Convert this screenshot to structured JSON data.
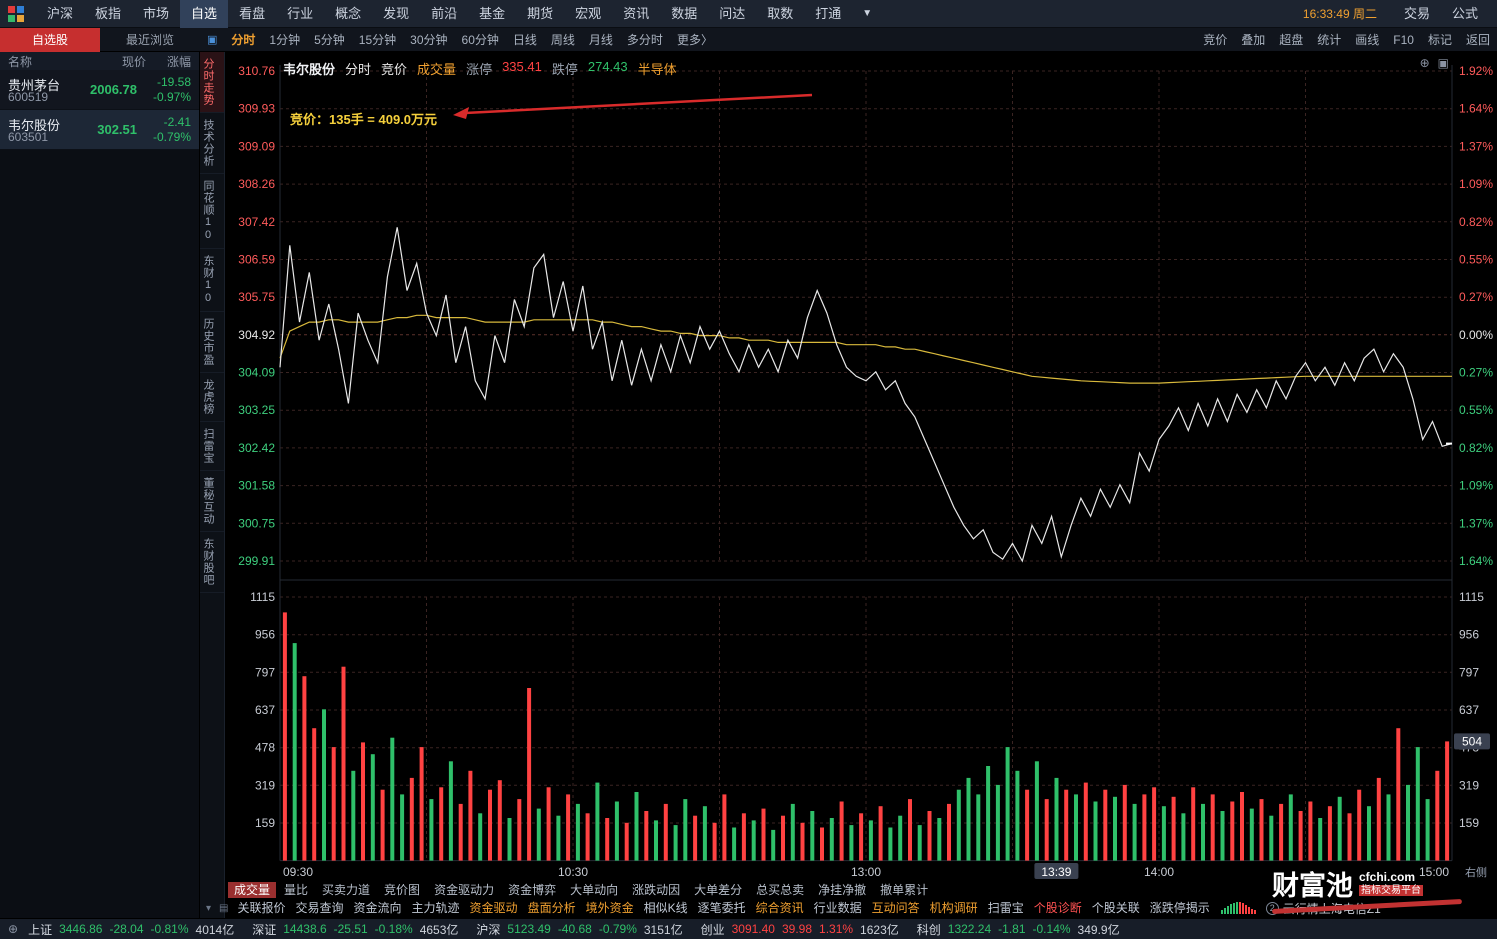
{
  "colors": {
    "up": "#ff4242",
    "down": "#2fc06a",
    "accent_orange": "#f0a030",
    "price_line": "#e8e8e8",
    "avg_line": "#d8b93c",
    "grid": "#3a2422",
    "axis_text": "#c8ccd4"
  },
  "top_bar": {
    "menu": [
      "沪深",
      "板指",
      "市场",
      "自选",
      "看盘",
      "行业",
      "概念",
      "发现",
      "前沿",
      "基金",
      "期货",
      "宏观",
      "资讯",
      "数据",
      "问达",
      "取数",
      "打通"
    ],
    "active_item": "自选",
    "dropdown": "▼",
    "clock": "16:33:49 周二",
    "right_items": [
      "交易",
      "公式"
    ]
  },
  "watchlist_panel": {
    "tabs": [
      {
        "label": "自选股",
        "active": true
      },
      {
        "label": "最近浏览",
        "active": false
      }
    ],
    "columns": [
      "名称",
      "现价",
      "涨幅"
    ],
    "rows": [
      {
        "name": "贵州茅台",
        "code": "600519",
        "price": "2006.78",
        "change": "-19.58",
        "pct": "-0.97%",
        "dir": "down",
        "selected": false
      },
      {
        "name": "韦尔股份",
        "code": "603501",
        "price": "302.51",
        "change": "-2.41",
        "pct": "-0.79%",
        "dir": "down",
        "selected": true
      }
    ]
  },
  "side_tabs": [
    {
      "label": "分时走势",
      "active": true
    },
    {
      "label": "技术分析",
      "active": false
    },
    {
      "label": "同花顺10",
      "active": false
    },
    {
      "label": "东财10",
      "active": false
    },
    {
      "label": "历史市盈",
      "active": false
    },
    {
      "label": "龙虎榜",
      "active": false
    },
    {
      "label": "扫雷宝",
      "active": false
    },
    {
      "label": "董秘互动",
      "active": false
    },
    {
      "label": "东财股吧",
      "active": false
    }
  ],
  "period_bar": {
    "items": [
      "分时",
      "1分钟",
      "5分钟",
      "15分钟",
      "30分钟",
      "60分钟",
      "日线",
      "周线",
      "月线",
      "多分时",
      "更多〉"
    ],
    "active_item": "分时",
    "right_items": [
      "竞价",
      "叠加",
      "超盘",
      "统计",
      "画线",
      "F10",
      "标记",
      "返回"
    ]
  },
  "chart_header": {
    "symbol": "韦尔股份",
    "items": [
      {
        "label": "分时",
        "color": "#e8e8e8"
      },
      {
        "label": "竞价",
        "color": "#e8e8e8"
      },
      {
        "label": "成交量",
        "color": "#f0a030"
      },
      {
        "label": "涨停",
        "color": "#9aa3b0"
      },
      {
        "label": "335.41",
        "color": "#ff4242"
      },
      {
        "label": "跌停",
        "color": "#9aa3b0"
      },
      {
        "label": "274.43",
        "color": "#2fc06a"
      },
      {
        "label": "半导体",
        "color": "#f0a030"
      }
    ]
  },
  "annotation": {
    "text": "竞价：135手 = 409.0万元"
  },
  "chart_data": {
    "type": "line",
    "title": "韦尔股份 分时",
    "prev_close": 304.92,
    "price_axis_labels": [
      310.76,
      309.93,
      309.09,
      308.26,
      307.42,
      306.59,
      305.75,
      304.92,
      304.09,
      303.25,
      302.42,
      301.58,
      300.75,
      299.91
    ],
    "pct_axis_labels": [
      "1.92%",
      "1.64%",
      "1.37%",
      "1.09%",
      "0.82%",
      "0.55%",
      "0.27%",
      "0.00%",
      "0.27%",
      "0.55%",
      "0.82%",
      "1.09%",
      "1.37%",
      "1.64%"
    ],
    "volume_axis_labels": [
      1115,
      956,
      797,
      637,
      478,
      319,
      159
    ],
    "time_labels": [
      {
        "label": "09:30",
        "t": 0
      },
      {
        "label": "10:30",
        "t": 60
      },
      {
        "label": "13:00",
        "t": 120
      },
      {
        "label": "13:39",
        "t": 159,
        "boxed": true
      },
      {
        "label": "14:00",
        "t": 180
      },
      {
        "label": "15:00",
        "t": 240
      }
    ],
    "corner_label": "右侧",
    "total_minutes": 240,
    "step_minutes": 2,
    "series": [
      {
        "name": "price",
        "values": [
          304.2,
          306.9,
          305.2,
          306.3,
          304.8,
          305.6,
          304.6,
          303.4,
          305.4,
          304.8,
          304.3,
          306.2,
          307.3,
          305.9,
          306.5,
          305.4,
          304.9,
          305.8,
          304.3,
          305.1,
          303.9,
          303.5,
          304.9,
          304.3,
          305.7,
          305.1,
          306.4,
          306.7,
          305.3,
          306.1,
          305.0,
          306.0,
          304.6,
          305.2,
          303.9,
          304.8,
          303.8,
          304.6,
          303.9,
          304.7,
          304.1,
          304.9,
          304.3,
          305.1,
          304.6,
          305.0,
          304.5,
          304.1,
          304.7,
          304.2,
          304.6,
          304.1,
          304.8,
          304.4,
          305.3,
          305.9,
          305.4,
          304.7,
          304.2,
          304.0,
          303.9,
          304.1,
          303.7,
          303.9,
          303.4,
          303.1,
          302.6,
          302.1,
          301.6,
          301.1,
          300.7,
          300.4,
          300.6,
          300.1,
          299.95,
          300.3,
          299.91,
          300.7,
          300.3,
          300.9,
          300.0,
          300.7,
          301.3,
          300.9,
          301.5,
          301.1,
          301.6,
          301.2,
          302.3,
          301.9,
          302.6,
          302.9,
          303.3,
          302.8,
          303.4,
          302.9,
          303.5,
          303.0,
          303.6,
          303.2,
          303.7,
          303.3,
          303.9,
          303.5,
          304.0,
          304.3,
          303.9,
          304.2,
          303.8,
          304.3,
          303.9,
          304.4,
          304.6,
          304.1,
          304.5,
          304.2,
          303.5,
          302.6,
          303.0,
          302.45,
          302.51
        ]
      },
      {
        "name": "average",
        "values": [
          304.4,
          305.0,
          305.1,
          305.2,
          305.2,
          305.25,
          305.25,
          305.2,
          305.2,
          305.2,
          305.2,
          305.25,
          305.3,
          305.3,
          305.35,
          305.35,
          305.3,
          305.3,
          305.3,
          305.3,
          305.25,
          305.2,
          305.2,
          305.2,
          305.2,
          305.2,
          305.25,
          305.25,
          305.25,
          305.25,
          305.25,
          305.25,
          305.25,
          305.2,
          305.2,
          305.15,
          305.1,
          305.1,
          305.05,
          305.0,
          305.0,
          304.95,
          304.95,
          304.9,
          304.9,
          304.9,
          304.85,
          304.85,
          304.8,
          304.8,
          304.8,
          304.75,
          304.75,
          304.75,
          304.75,
          304.75,
          304.75,
          304.75,
          304.7,
          304.7,
          304.7,
          304.7,
          304.65,
          304.65,
          304.6,
          304.6,
          304.55,
          304.5,
          304.45,
          304.4,
          304.35,
          304.3,
          304.25,
          304.2,
          304.15,
          304.1,
          304.05,
          304.0,
          303.98,
          303.96,
          303.94,
          303.92,
          303.9,
          303.89,
          303.88,
          303.87,
          303.86,
          303.85,
          303.85,
          303.85,
          303.85,
          303.86,
          303.87,
          303.88,
          303.89,
          303.9,
          303.91,
          303.92,
          303.93,
          303.94,
          303.95,
          303.96,
          303.97,
          303.98,
          303.99,
          304.0,
          304.0,
          304.0,
          304.0,
          304.0,
          304.0,
          304.0,
          304.0,
          304.0,
          304.0,
          304.0,
          304.0,
          304.0,
          304.0,
          304.0,
          304.0
        ]
      }
    ],
    "volume_bars": [
      [
        1050,
        "r"
      ],
      [
        920,
        "g"
      ],
      [
        780,
        "r"
      ],
      [
        560,
        "r"
      ],
      [
        640,
        "g"
      ],
      [
        480,
        "r"
      ],
      [
        820,
        "r"
      ],
      [
        380,
        "g"
      ],
      [
        500,
        "r"
      ],
      [
        450,
        "g"
      ],
      [
        300,
        "r"
      ],
      [
        520,
        "g"
      ],
      [
        280,
        "g"
      ],
      [
        350,
        "r"
      ],
      [
        480,
        "r"
      ],
      [
        260,
        "g"
      ],
      [
        310,
        "r"
      ],
      [
        420,
        "g"
      ],
      [
        240,
        "r"
      ],
      [
        380,
        "r"
      ],
      [
        200,
        "g"
      ],
      [
        300,
        "r"
      ],
      [
        340,
        "r"
      ],
      [
        180,
        "g"
      ],
      [
        260,
        "r"
      ],
      [
        730,
        "r"
      ],
      [
        220,
        "g"
      ],
      [
        310,
        "r"
      ],
      [
        190,
        "g"
      ],
      [
        280,
        "r"
      ],
      [
        240,
        "g"
      ],
      [
        200,
        "r"
      ],
      [
        330,
        "g"
      ],
      [
        180,
        "r"
      ],
      [
        250,
        "g"
      ],
      [
        160,
        "r"
      ],
      [
        290,
        "g"
      ],
      [
        210,
        "r"
      ],
      [
        170,
        "g"
      ],
      [
        240,
        "r"
      ],
      [
        150,
        "g"
      ],
      [
        260,
        "g"
      ],
      [
        190,
        "r"
      ],
      [
        230,
        "g"
      ],
      [
        160,
        "r"
      ],
      [
        280,
        "r"
      ],
      [
        140,
        "g"
      ],
      [
        200,
        "r"
      ],
      [
        170,
        "g"
      ],
      [
        220,
        "r"
      ],
      [
        130,
        "g"
      ],
      [
        190,
        "r"
      ],
      [
        240,
        "g"
      ],
      [
        160,
        "r"
      ],
      [
        210,
        "g"
      ],
      [
        140,
        "r"
      ],
      [
        180,
        "g"
      ],
      [
        250,
        "r"
      ],
      [
        150,
        "g"
      ],
      [
        200,
        "r"
      ],
      [
        170,
        "g"
      ],
      [
        230,
        "r"
      ],
      [
        140,
        "g"
      ],
      [
        190,
        "g"
      ],
      [
        260,
        "r"
      ],
      [
        150,
        "g"
      ],
      [
        210,
        "r"
      ],
      [
        180,
        "g"
      ],
      [
        240,
        "r"
      ],
      [
        300,
        "g"
      ],
      [
        350,
        "g"
      ],
      [
        280,
        "g"
      ],
      [
        400,
        "g"
      ],
      [
        320,
        "g"
      ],
      [
        480,
        "g"
      ],
      [
        380,
        "g"
      ],
      [
        300,
        "r"
      ],
      [
        420,
        "g"
      ],
      [
        260,
        "r"
      ],
      [
        350,
        "g"
      ],
      [
        300,
        "r"
      ],
      [
        280,
        "g"
      ],
      [
        330,
        "r"
      ],
      [
        250,
        "g"
      ],
      [
        300,
        "r"
      ],
      [
        270,
        "g"
      ],
      [
        320,
        "r"
      ],
      [
        240,
        "g"
      ],
      [
        280,
        "r"
      ],
      [
        310,
        "r"
      ],
      [
        230,
        "g"
      ],
      [
        270,
        "r"
      ],
      [
        200,
        "g"
      ],
      [
        310,
        "r"
      ],
      [
        240,
        "g"
      ],
      [
        280,
        "r"
      ],
      [
        210,
        "g"
      ],
      [
        250,
        "r"
      ],
      [
        290,
        "r"
      ],
      [
        220,
        "g"
      ],
      [
        260,
        "r"
      ],
      [
        190,
        "g"
      ],
      [
        240,
        "r"
      ],
      [
        280,
        "g"
      ],
      [
        210,
        "r"
      ],
      [
        250,
        "r"
      ],
      [
        180,
        "g"
      ],
      [
        230,
        "r"
      ],
      [
        270,
        "g"
      ],
      [
        200,
        "r"
      ],
      [
        300,
        "r"
      ],
      [
        230,
        "g"
      ],
      [
        350,
        "r"
      ],
      [
        280,
        "g"
      ],
      [
        560,
        "r"
      ],
      [
        320,
        "g"
      ],
      [
        480,
        "g"
      ],
      [
        260,
        "g"
      ],
      [
        380,
        "r"
      ],
      [
        504,
        "r"
      ]
    ],
    "volume_last_marker": 504,
    "last_price": 302.51
  },
  "indicator_tabs": {
    "items": [
      "成交量",
      "量比",
      "买卖力道",
      "竞价图",
      "资金驱动力",
      "资金博弈",
      "大单动向",
      "涨跌动因",
      "大单差分",
      "总买总卖",
      "净挂净撤",
      "撤单累计"
    ],
    "active_item": "成交量"
  },
  "function_tabs": {
    "items": [
      {
        "label": "关联报价",
        "color": "#c0c8d4"
      },
      {
        "label": "交易查询",
        "color": "#c0c8d4"
      },
      {
        "label": "资金流向",
        "color": "#c0c8d4"
      },
      {
        "label": "主力轨迹",
        "color": "#c0c8d4"
      },
      {
        "label": "资金驱动",
        "color": "#f0a030"
      },
      {
        "label": "盘面分析",
        "color": "#f0a030"
      },
      {
        "label": "境外资金",
        "color": "#f0a030"
      },
      {
        "label": "相似K线",
        "color": "#c0c8d4"
      },
      {
        "label": "逐笔委托",
        "color": "#c0c8d4"
      },
      {
        "label": "综合资讯",
        "color": "#f0a030"
      },
      {
        "label": "行业数据",
        "color": "#c0c8d4"
      },
      {
        "label": "互动问答",
        "color": "#f0a030"
      },
      {
        "label": "机构调研",
        "color": "#f0a030"
      },
      {
        "label": "扫雷宝",
        "color": "#c0c8d4"
      },
      {
        "label": "个股诊断",
        "color": "#ff5252"
      },
      {
        "label": "个股关联",
        "color": "#c0c8d4"
      },
      {
        "label": "涨跌停揭示",
        "color": "#c0c8d4"
      }
    ],
    "connection": "云行情上海电信Z1",
    "connection_badge": "2"
  },
  "watermark": {
    "title": "财富池",
    "domain": "cfchi.com",
    "subtitle": "指标交易平台"
  },
  "status_bar": {
    "indices": [
      {
        "name": "上证",
        "value": "3446.86",
        "change": "-28.04",
        "pct": "-0.81%",
        "amount": "4014亿",
        "dir": "down"
      },
      {
        "name": "深证",
        "value": "14438.6",
        "change": "-25.51",
        "pct": "-0.18%",
        "amount": "4653亿",
        "dir": "down"
      },
      {
        "name": "沪深",
        "value": "5123.49",
        "change": "-40.68",
        "pct": "-0.79%",
        "amount": "3151亿",
        "dir": "down"
      },
      {
        "name": "创业",
        "value": "3091.40",
        "change": "39.98",
        "pct": "1.31%",
        "amount": "1623亿",
        "dir": "up"
      },
      {
        "name": "科创",
        "value": "1322.24",
        "change": "-1.81",
        "pct": "-0.14%",
        "amount": "349.9亿",
        "dir": "down"
      }
    ]
  }
}
